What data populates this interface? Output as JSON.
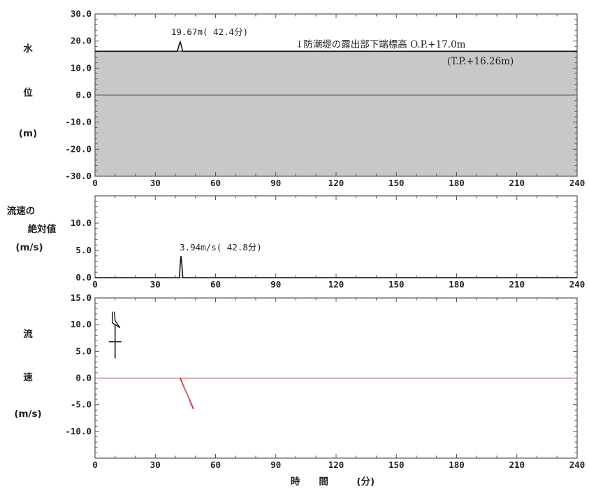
{
  "x_tick_labels": [
    "0",
    "30",
    "60",
    "90",
    "120",
    "150",
    "180",
    "210",
    "240"
  ],
  "xlabel": "時　　間　　　(分)",
  "colors": {
    "frame": "#555555",
    "wall_fill": "#c8c8c8",
    "series": "#111111",
    "zero_line": "#a03030",
    "vector": "#c04040"
  },
  "chart_data": [
    {
      "type": "line",
      "name": "water-level",
      "ylabel_chars": [
        "水",
        "位",
        "(m)"
      ],
      "x_range": [
        0,
        240
      ],
      "ylim": [
        -30,
        30
      ],
      "y_ticks": [
        "30.0",
        "20.0",
        "10.0",
        "0.0",
        "-10.0",
        "-20.0",
        "-30.0"
      ],
      "shaded_band_top": 16.26,
      "series": [
        {
          "x": [
            0,
            41.0,
            41.8,
            42.4,
            43.0,
            43.6,
            250
          ],
          "y": [
            16.2,
            16.2,
            18.4,
            19.67,
            18.2,
            16.2,
            16.2
          ]
        }
      ],
      "annotations": {
        "peak_label": "19.67m( 42.4分)",
        "seawall_label": "↓防潮堤の露出部下端標高 O.P.+17.0m",
        "seawall_sublabel": "(T.P.+16.26m)"
      }
    },
    {
      "type": "line",
      "name": "velocity-magnitude",
      "ylabel_lines": [
        "流速の",
        "絶対値",
        "(m/s)"
      ],
      "x_range": [
        0,
        240
      ],
      "ylim": [
        0,
        15
      ],
      "y_ticks": [
        "10.0",
        "5.0",
        "0.0"
      ],
      "series": [
        {
          "x": [
            0,
            42.0,
            42.5,
            42.8,
            43.2,
            43.7,
            250
          ],
          "y": [
            0,
            0,
            2.9,
            3.94,
            2.6,
            0,
            0
          ]
        }
      ],
      "annotations": {
        "peak_label": "3.94m/s( 42.8分)"
      }
    },
    {
      "type": "vector",
      "name": "velocity-vectors",
      "ylabel_chars": [
        "流",
        "速",
        "(m/s)"
      ],
      "x_range": [
        0,
        240
      ],
      "ylim": [
        -15,
        15
      ],
      "y_ticks": [
        "15.0",
        "10.0",
        "5.0",
        "0.0",
        "-5.0",
        "-10.0"
      ],
      "vector": {
        "t_start": 42.4,
        "t_end": 49.0,
        "v_start": 0,
        "v_end": -5.8
      },
      "compass": {
        "t": 10,
        "v": 6.8
      }
    }
  ]
}
